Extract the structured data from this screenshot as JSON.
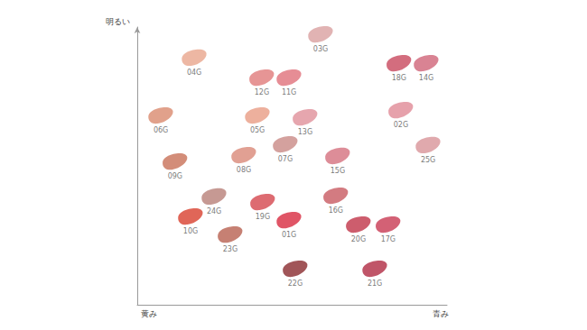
{
  "chart_data": {
    "type": "scatter",
    "ylabel": "明るい",
    "xlabel_start": "黄み",
    "xlabel": "青み",
    "labels": [
      "04G",
      "03G",
      "12G",
      "11G",
      "18G",
      "14G",
      "06G",
      "05G",
      "13G",
      "02G",
      "08G",
      "07G",
      "15G",
      "25G",
      "09G",
      "24G",
      "19G",
      "16G",
      "10G",
      "01G",
      "20G",
      "17G",
      "23G",
      "22G",
      "21G"
    ],
    "x": [
      18.4,
      59.2,
      40.2,
      49.0,
      84.5,
      93.3,
      7.6,
      38.8,
      54.2,
      85.1,
      34.4,
      47.8,
      64.7,
      93.9,
      12.2,
      24.8,
      40.5,
      64.1,
      17.2,
      49.0,
      71.4,
      81.0,
      30.0,
      51.0,
      76.7
    ],
    "y": [
      89.0,
      97.4,
      81.8,
      81.8,
      87.0,
      87.0,
      68.2,
      68.2,
      67.5,
      70.1,
      53.9,
      57.8,
      53.6,
      57.5,
      51.6,
      39.0,
      37.0,
      39.3,
      31.8,
      30.5,
      28.9,
      28.9,
      25.3,
      13.0,
      13.0
    ],
    "colors": [
      "#e8a58c",
      "#d9a0a0",
      "#e07a7a",
      "#e0707a",
      "#c8485e",
      "#d06478",
      "#d98a6e",
      "#e89c84",
      "#e0909a",
      "#e08a96",
      "#d98878",
      "#c98a86",
      "#d5707e",
      "#d89498",
      "#c87058",
      "#b88078",
      "#d5464e",
      "#c85a62",
      "#d8402e",
      "#d82a40",
      "#c03448",
      "#c83a52",
      "#b86050",
      "#8a2a2e",
      "#b02a42"
    ],
    "xlim": [
      0,
      100
    ],
    "ylim": [
      0,
      100
    ],
    "grid": false,
    "tick_labels": false,
    "marker": "swatch"
  }
}
